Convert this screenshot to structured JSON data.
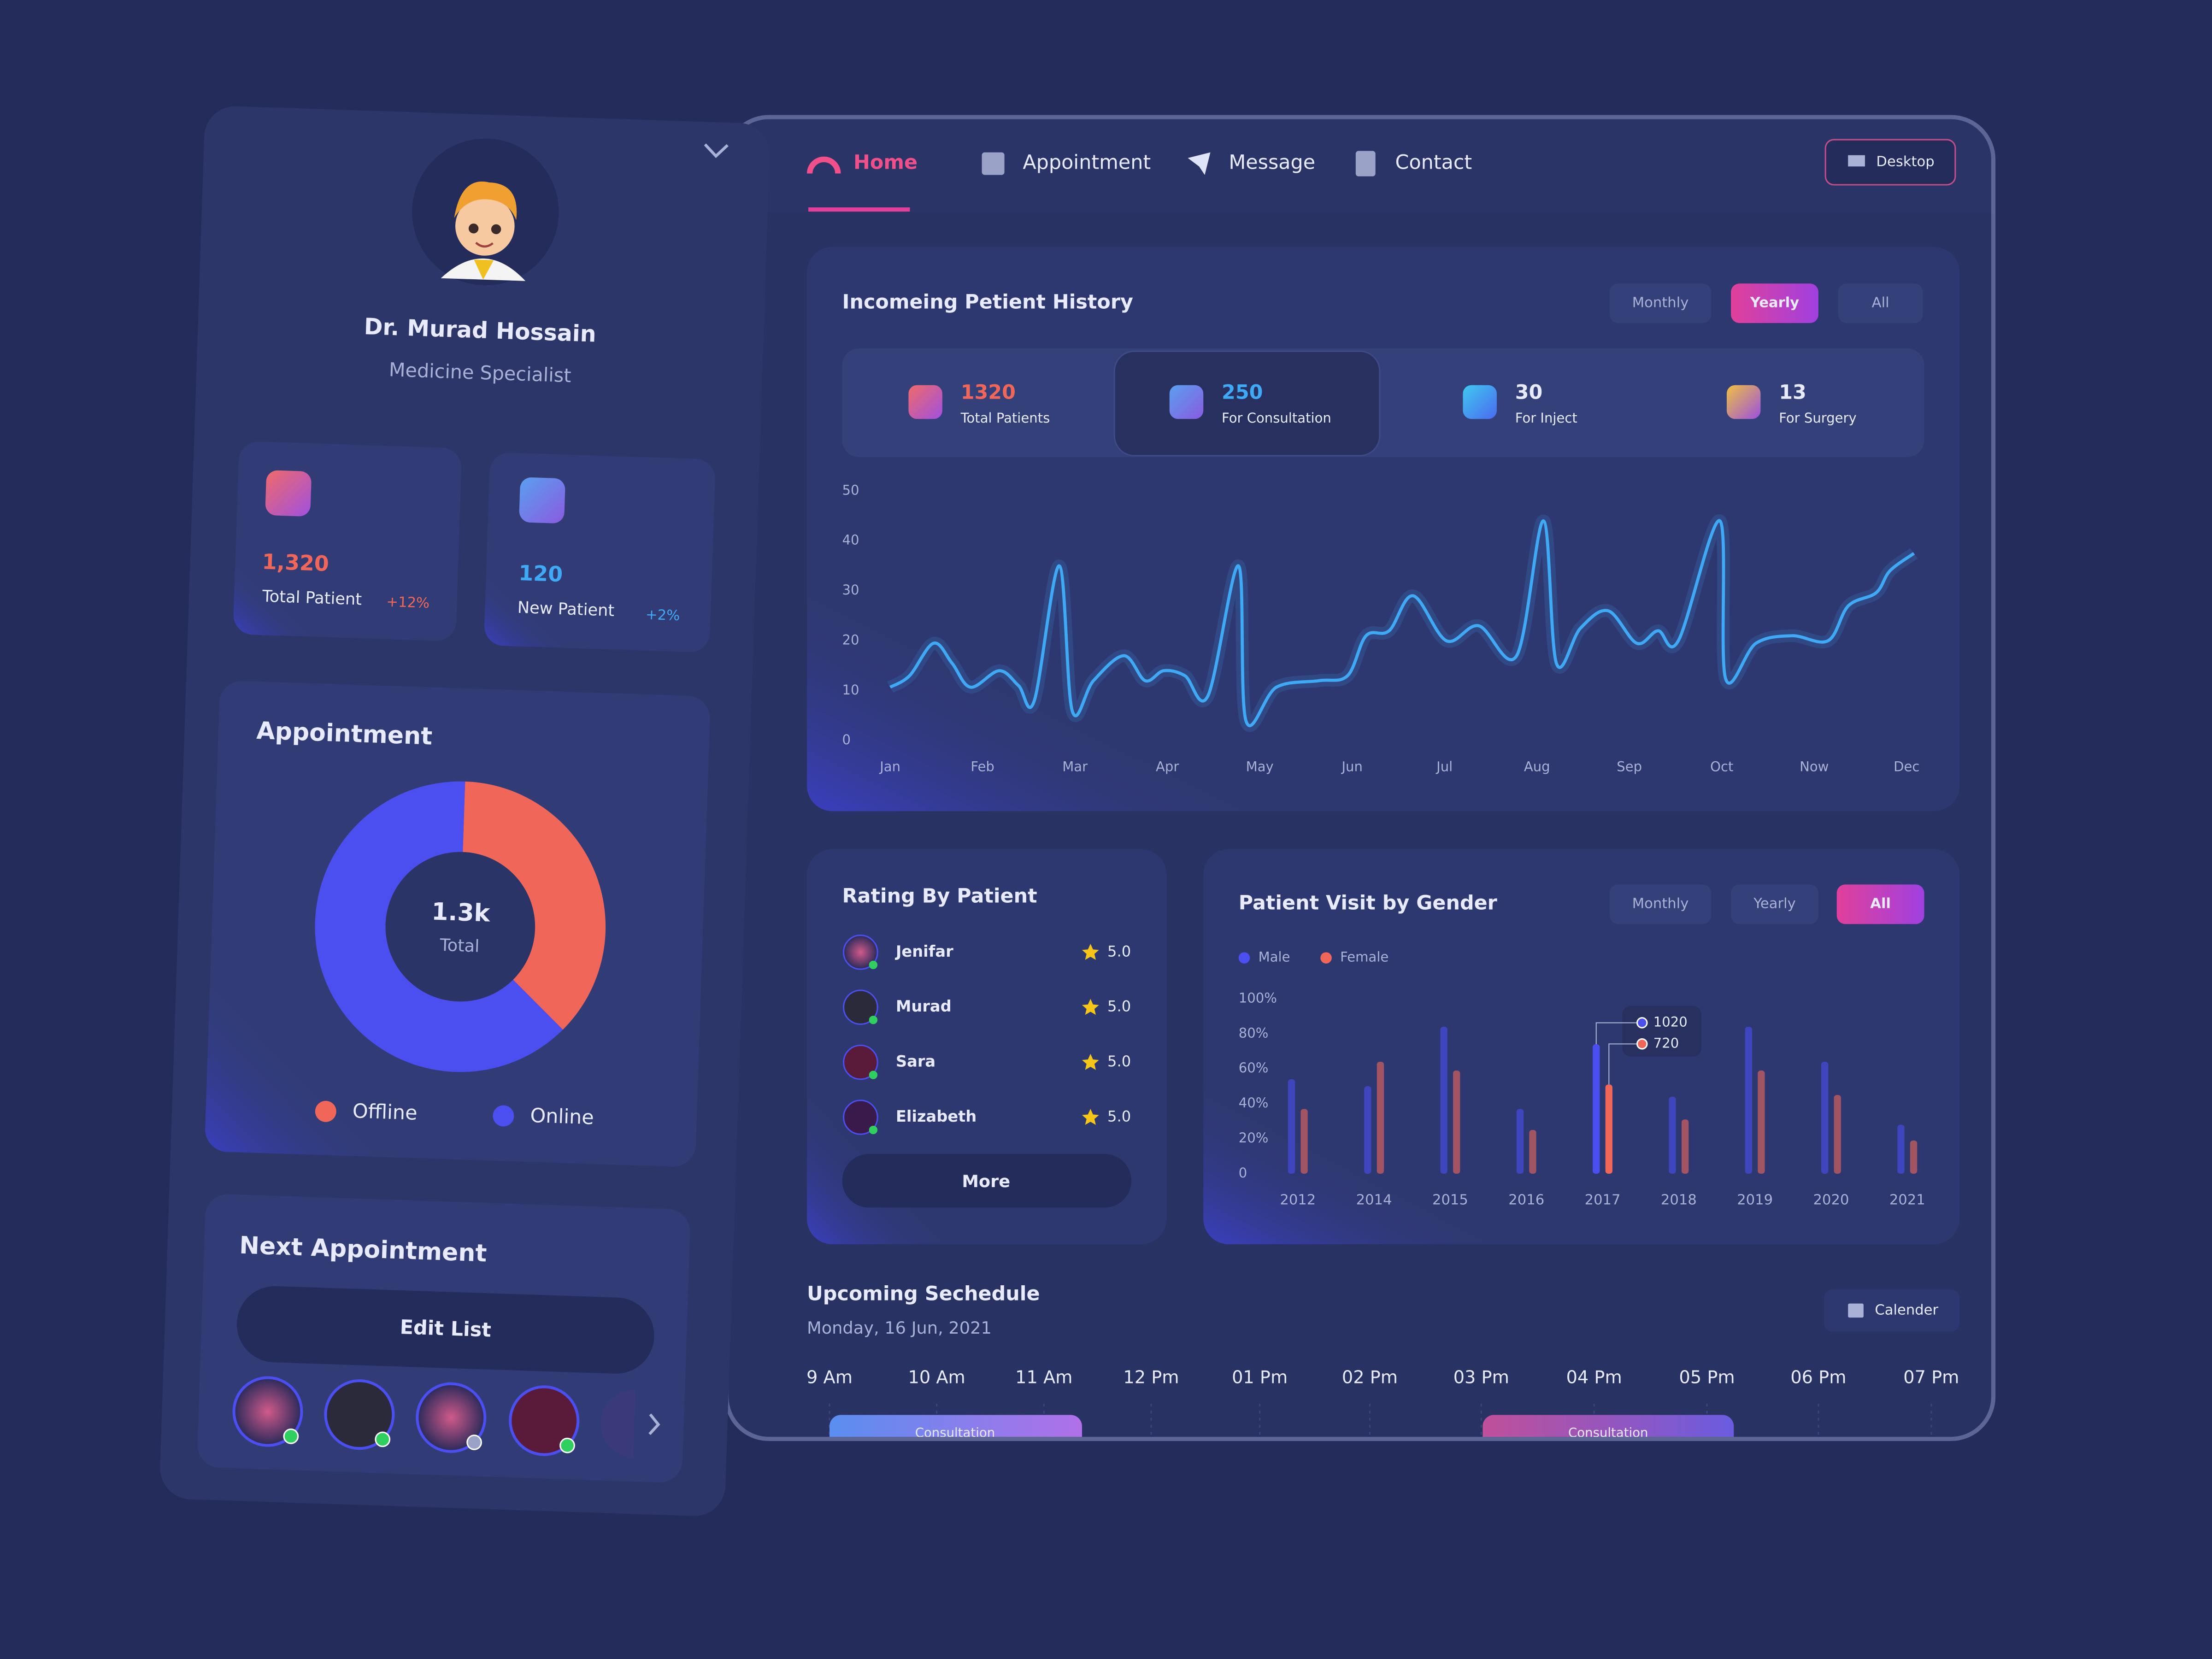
{
  "sidebar": {
    "name": "Dr. Murad Hossain",
    "role": "Medicine Specialist",
    "stats": [
      {
        "value": "1,320",
        "label": "Total Patient",
        "change": "+12%"
      },
      {
        "value": "120",
        "label": "New Patient",
        "change": "+2%"
      }
    ],
    "next_title": "Next Appointment",
    "edit": "Edit List"
  },
  "nav": {
    "items": [
      "Home",
      "Appointment",
      "Message",
      "Contact"
    ],
    "device": "Desktop"
  },
  "history": {
    "tabs": [
      "Monthly",
      "Yearly",
      "All"
    ],
    "stats": [
      {
        "value": "1320",
        "label": "Total Patients"
      },
      {
        "value": "250",
        "label": "For Consultation"
      },
      {
        "value": "30",
        "label": "For Inject"
      },
      {
        "value": "13",
        "label": "For Surgery"
      }
    ]
  },
  "rating": {
    "title": "Rating By Patient",
    "rows": [
      {
        "name": "Jenifar",
        "score": "5.0"
      },
      {
        "name": "Murad",
        "score": "5.0"
      },
      {
        "name": "Sara",
        "score": "5.0"
      },
      {
        "name": "Elizabeth",
        "score": "5.0"
      }
    ],
    "more": "More"
  },
  "gender": {
    "tabs": [
      "Monthly",
      "Yearly",
      "All"
    ]
  },
  "schedule": {
    "title": "Upcoming Sechedule",
    "date": "Monday, 16 Jun, 2021",
    "button": "Calender",
    "times": [
      "9 Am",
      "10 Am",
      "11 Am",
      "12 Pm",
      "01 Pm",
      "02 Pm",
      "03 Pm",
      "04 Pm",
      "05 Pm",
      "06 Pm",
      "07 Pm"
    ],
    "events": [
      "Consultation",
      "Consultation"
    ]
  },
  "chart_data": [
    {
      "type": "line",
      "title": "Incomeing Petient History",
      "color": "#3fa9f5",
      "grid": false,
      "x": [
        0,
        0.21,
        0.47,
        0.67,
        0.87,
        1.18,
        1.39,
        1.56,
        1.83,
        1.97,
        2.2,
        2.53,
        2.76,
        2.96,
        3.19,
        3.44,
        3.77,
        3.85,
        4.18,
        4.64,
        4.95,
        5.15,
        5.4,
        5.66,
        6.02,
        6.37,
        6.78,
        7.07,
        7.21,
        7.47,
        7.77,
        8.08,
        8.31,
        8.53,
        8.98,
        9.04,
        9.37,
        9.76,
        10.15,
        10.37,
        10.67,
        10.82,
        11.08
      ],
      "values": [
        10.7,
        13,
        19.5,
        15.5,
        10.7,
        14,
        11,
        8,
        35,
        6,
        12,
        17,
        12,
        14,
        13,
        9,
        35,
        4,
        10.7,
        12,
        13,
        21,
        22,
        29,
        20,
        23,
        17,
        44,
        15.5,
        22.5,
        26,
        19.5,
        22,
        20,
        44,
        12.5,
        19.5,
        21,
        20,
        27,
        29.6,
        34,
        37.5
      ],
      "xlim": [
        0,
        11.1
      ],
      "xticks": [
        {
          "value": 0,
          "label": "Jan"
        },
        {
          "value": 1,
          "label": "Feb"
        },
        {
          "value": 2,
          "label": "Mar"
        },
        {
          "value": 3,
          "label": "Apr"
        },
        {
          "value": 4,
          "label": "May"
        },
        {
          "value": 5,
          "label": "Jun"
        },
        {
          "value": 6,
          "label": "Jul"
        },
        {
          "value": 7,
          "label": "Aug"
        },
        {
          "value": 8,
          "label": "Sep"
        },
        {
          "value": 9,
          "label": "Oct"
        },
        {
          "value": 10,
          "label": "Now"
        },
        {
          "value": 11,
          "label": "Dec"
        }
      ],
      "ylim": [
        0,
        50
      ],
      "yticks": [
        0,
        10,
        20,
        30,
        40,
        50
      ]
    },
    {
      "type": "bar",
      "title": "Patient Visit by Gender",
      "legend": "top-left",
      "categories": [
        "2012",
        "2014",
        "2015",
        "2016",
        "2017",
        "2018",
        "2019",
        "2020",
        "2021"
      ],
      "series": [
        {
          "name": "Male",
          "color": "#4b4ff0",
          "values": [
            54,
            50,
            84,
            37,
            74,
            44,
            84,
            64,
            28
          ]
        },
        {
          "name": "Female",
          "color": "#f0675a",
          "values": [
            37,
            64,
            59,
            25,
            51,
            31,
            59,
            45,
            19
          ]
        }
      ],
      "annotations": [
        "1020",
        "720"
      ],
      "ylim": [
        0,
        100
      ],
      "yticks": [
        0,
        {
          "value": 20,
          "label": "20%"
        },
        {
          "value": 40,
          "label": "40%"
        },
        {
          "value": 60,
          "label": "60%"
        },
        {
          "value": 80,
          "label": "80%"
        },
        {
          "value": 100,
          "label": "100%"
        }
      ]
    },
    {
      "type": "pie",
      "title": "Appointment",
      "center": "1.3k",
      "center_label": "Total",
      "categories": [
        "Offline",
        "Online"
      ],
      "values": [
        37,
        63
      ],
      "colors": [
        "#f0675a",
        "#4b4ff0"
      ]
    }
  ]
}
